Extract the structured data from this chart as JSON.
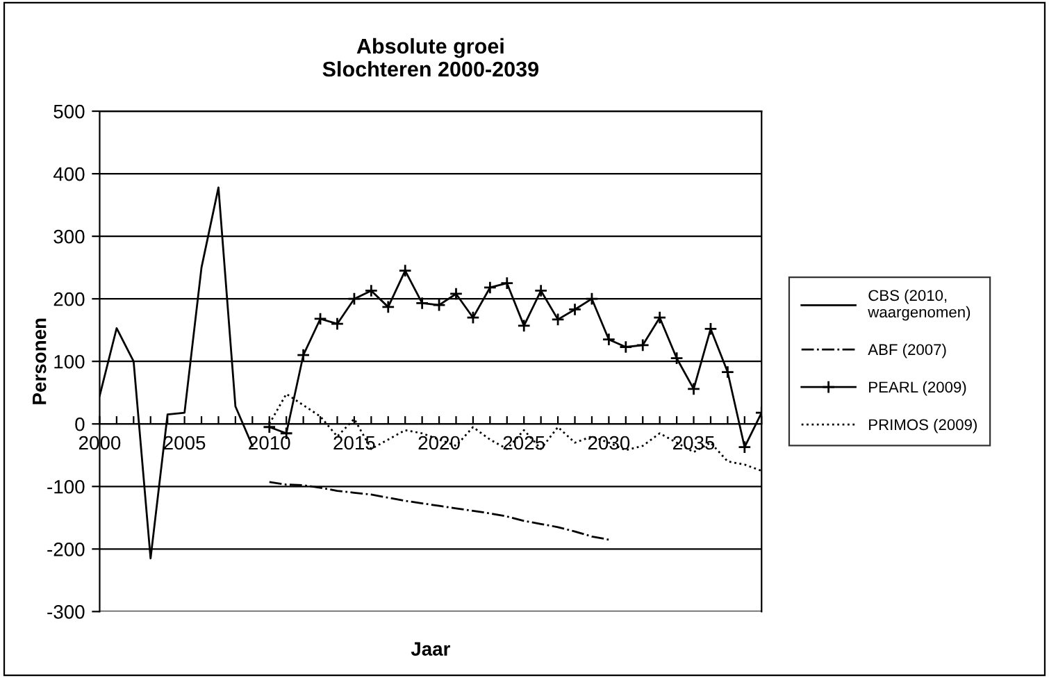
{
  "chart_data": {
    "type": "line",
    "title": "Absolute groei\nSlochteren 2000-2039",
    "xlabel": "Jaar",
    "ylabel": "Personen",
    "categories": [
      "2000",
      null,
      null,
      null,
      null,
      "2005",
      null,
      null,
      null,
      null,
      "2010",
      null,
      null,
      null,
      null,
      "2015",
      null,
      null,
      null,
      null,
      "2020",
      null,
      null,
      null,
      null,
      "2025",
      null,
      null,
      null,
      null,
      "2030",
      null,
      null,
      null,
      null,
      "2035",
      null,
      null,
      null,
      null
    ],
    "ylim": [
      -300,
      500
    ],
    "yticks": [
      -300,
      -200,
      -100,
      0,
      100,
      200,
      300,
      400,
      500
    ],
    "grid": "y",
    "legend": "right",
    "series": [
      {
        "name": "CBS (2010,\nwaargenomen)",
        "color": "#000000",
        "line_style": "solid",
        "marker": "none",
        "values": [
          45,
          153,
          100,
          -215,
          15,
          18,
          250,
          378,
          28,
          -35,
          null,
          null,
          null,
          null,
          null,
          null,
          null,
          null,
          null,
          null,
          null,
          null,
          null,
          null,
          null,
          null,
          null,
          null,
          null,
          null,
          null,
          null,
          null,
          null,
          null,
          null,
          null,
          null,
          null,
          null
        ]
      },
      {
        "name": "ABF (2007)",
        "color": "#000000",
        "line_style": "dashdot",
        "marker": "none",
        "values": [
          null,
          null,
          null,
          null,
          null,
          null,
          null,
          null,
          null,
          null,
          -93,
          -97,
          -98,
          -102,
          -107,
          -110,
          -113,
          -118,
          -123,
          -127,
          -131,
          -135,
          -139,
          -143,
          -148,
          -155,
          -160,
          -165,
          -172,
          -180,
          -185,
          null,
          null,
          null,
          null,
          null,
          null,
          null,
          null,
          null
        ]
      },
      {
        "name": "PEARL (2009)",
        "color": "#000000",
        "line_style": "solid",
        "marker": "cross",
        "values": [
          null,
          null,
          null,
          null,
          null,
          null,
          null,
          null,
          null,
          null,
          -5,
          -15,
          110,
          168,
          160,
          200,
          213,
          187,
          245,
          193,
          190,
          208,
          170,
          218,
          225,
          157,
          213,
          167,
          183,
          200,
          135,
          123,
          126,
          170,
          105,
          56,
          152,
          83,
          -37,
          18
        ]
      },
      {
        "name": "PRIMOS (2009)",
        "color": "#000000",
        "line_style": "dotted",
        "marker": "none",
        "values": [
          null,
          null,
          null,
          null,
          null,
          null,
          null,
          null,
          null,
          null,
          0,
          48,
          30,
          12,
          -20,
          8,
          -40,
          -25,
          -10,
          -15,
          -25,
          -35,
          -5,
          -25,
          -40,
          -10,
          -40,
          -5,
          -30,
          -20,
          -30,
          -42,
          -35,
          -15,
          -30,
          -45,
          -30,
          -60,
          -65,
          -75
        ]
      }
    ]
  }
}
